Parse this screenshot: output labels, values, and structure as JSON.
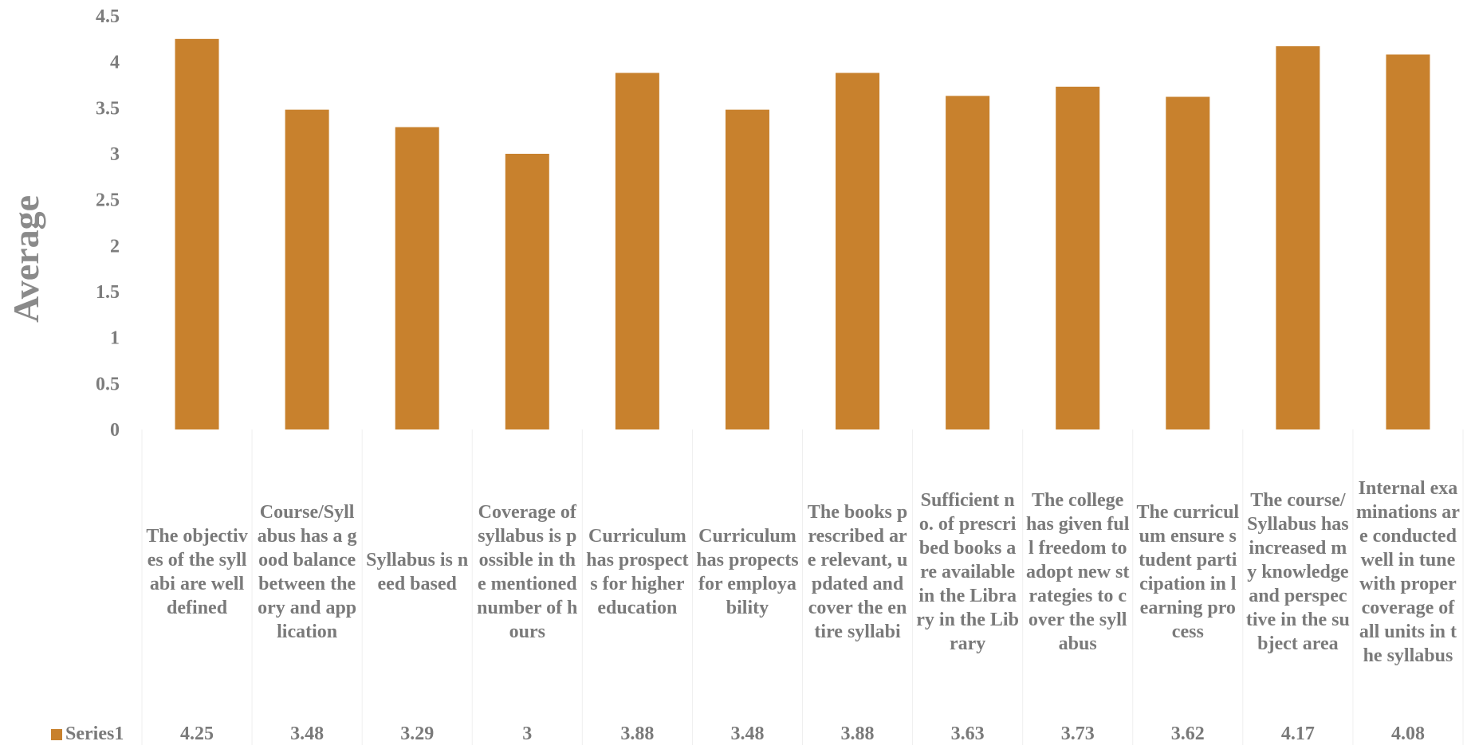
{
  "chart_data": {
    "type": "bar",
    "ylabel": "Average",
    "xlabel": "",
    "ylim": [
      0,
      4.5
    ],
    "yticks": [
      "0",
      "0.5",
      "1",
      "1.5",
      "2",
      "2.5",
      "3",
      "3.5",
      "4",
      "4.5"
    ],
    "bar_color": "#c8812d",
    "grid": false,
    "legend": "data-table-bottom",
    "categories": [
      "The objectives of the syllabi are well defined",
      "Course/Syllabus has a good balance between theory and application",
      "Syllabus is need based",
      "Coverage of syllabus is possible in the mentioned number of hours",
      "Curriculum has prospects for higher education",
      "Curriculum has propects for employability",
      "The books prescribed are relevant, updated and cover the entire syllabi",
      "Sufficient no. of prescribed books are available in the Library in the Library",
      "The college has given full freedom to adopt new strategies to cover the syllabus",
      "The curriculum ensure student participation in learning process",
      "The course/Syllabus has increased my knowledge and perspective in the subject area",
      "Internal examinations are conducted well in tune with proper coverage of all units in the syllabus"
    ],
    "series": [
      {
        "name": "Series1",
        "values": [
          4.25,
          3.48,
          3.29,
          3,
          3.88,
          3.48,
          3.88,
          3.63,
          3.73,
          3.62,
          4.17,
          4.08
        ],
        "value_labels": [
          "4.25",
          "3.48",
          "3.29",
          "3",
          "3.88",
          "3.48",
          "3.88",
          "3.63",
          "3.73",
          "3.62",
          "4.17",
          "4.08"
        ]
      }
    ]
  }
}
